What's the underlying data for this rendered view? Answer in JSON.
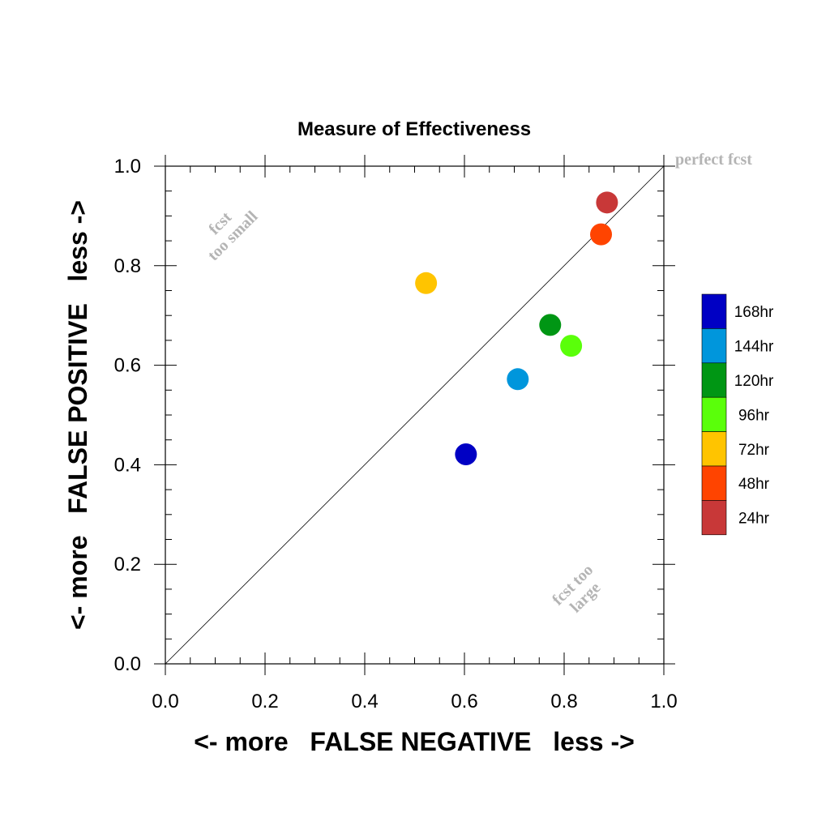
{
  "chart_data": {
    "type": "scatter",
    "title": "Measure of Effectiveness",
    "xlabel": "<- more   FALSE NEGATIVE   less ->",
    "ylabel": "<- more   FALSE POSITIVE   less ->",
    "xlim": [
      0.0,
      1.0
    ],
    "ylim": [
      0.0,
      1.0
    ],
    "x_ticks": [
      "0.0",
      "0.2",
      "0.4",
      "0.6",
      "0.8",
      "1.0"
    ],
    "y_ticks": [
      "0.0",
      "0.2",
      "0.4",
      "0.6",
      "0.8",
      "1.0"
    ],
    "grid": false,
    "legend_position": "right",
    "diagonal_line": true,
    "annotations": {
      "perfect": "perfect fcst",
      "too_small_1": "fcst",
      "too_small_2": "too small",
      "too_large_1": "fcst too",
      "too_large_2": "large"
    },
    "series": [
      {
        "name": "168hr",
        "color": "#0000c4",
        "x": 0.603,
        "y": 0.421
      },
      {
        "name": "144hr",
        "color": "#0096dc",
        "x": 0.707,
        "y": 0.572
      },
      {
        "name": "120hr",
        "color": "#009614",
        "x": 0.772,
        "y": 0.681
      },
      {
        "name": "96hr",
        "color": "#5aff0a",
        "x": 0.814,
        "y": 0.639
      },
      {
        "name": "72hr",
        "color": "#ffc400",
        "x": 0.523,
        "y": 0.765
      },
      {
        "name": "48hr",
        "color": "#ff4400",
        "x": 0.874,
        "y": 0.863
      },
      {
        "name": "24hr",
        "color": "#c83838",
        "x": 0.886,
        "y": 0.927
      }
    ]
  }
}
